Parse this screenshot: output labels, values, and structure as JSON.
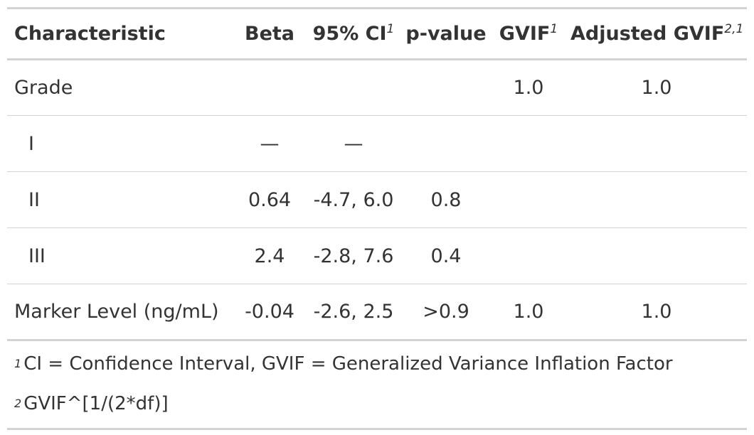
{
  "table": {
    "headers": {
      "characteristic": "Characteristic",
      "beta": "Beta",
      "ci": "95% CI",
      "ci_note": "1",
      "pvalue": "p-value",
      "gvif": "GVIF",
      "gvif_note": "1",
      "adj_gvif": "Adjusted GVIF",
      "adj_gvif_note": "2,1"
    },
    "rows": [
      {
        "label": "Grade",
        "beta": "",
        "ci": "",
        "p": "",
        "gvif": "1.0",
        "adj": "1.0"
      },
      {
        "label": "I",
        "beta": "—",
        "ci": "—",
        "p": "",
        "gvif": "",
        "adj": ""
      },
      {
        "label": "II",
        "beta": "0.64",
        "ci": "-4.7, 6.0",
        "p": "0.8",
        "gvif": "",
        "adj": ""
      },
      {
        "label": "III",
        "beta": "2.4",
        "ci": "-2.8, 7.6",
        "p": "0.4",
        "gvif": "",
        "adj": ""
      },
      {
        "label": "Marker Level (ng/mL)",
        "beta": "-0.04",
        "ci": "-2.6, 2.5",
        "p": ">0.9",
        "gvif": "1.0",
        "adj": "1.0"
      }
    ],
    "footnotes": [
      {
        "mark": "1",
        "text": "CI = Confidence Interval, GVIF = Generalized Variance Inflation Factor"
      },
      {
        "mark": "2",
        "text": "GVIF^[1/(2*df)]"
      }
    ]
  }
}
